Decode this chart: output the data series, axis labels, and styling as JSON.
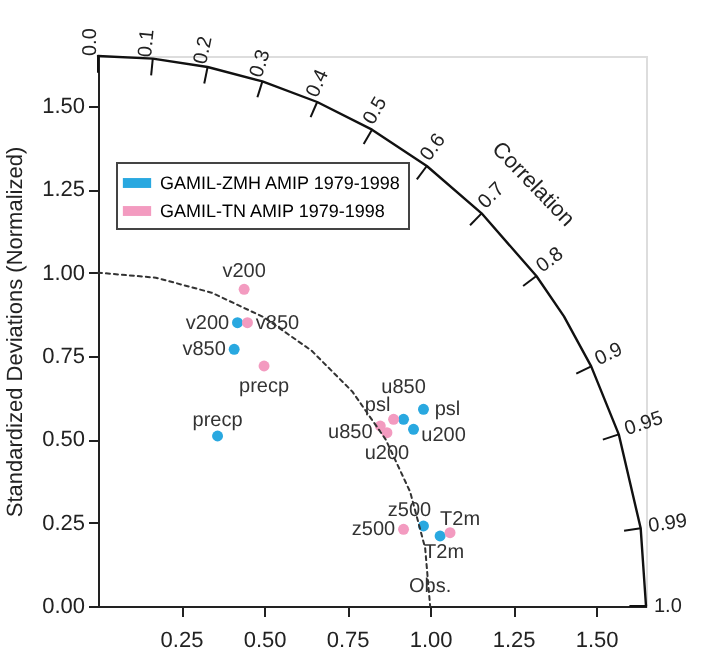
{
  "chart_data": {
    "type": "scatter",
    "ylabel": "Standardized Deviations (Normalized)",
    "xlim": [
      0,
      1.65
    ],
    "ylim": [
      0,
      1.65
    ],
    "xticks": [
      {
        "value": 0.25,
        "label": "0.25"
      },
      {
        "value": 0.5,
        "label": "0.50"
      },
      {
        "value": 0.75,
        "label": "0.75"
      },
      {
        "value": 1.0,
        "label": "1.00"
      },
      {
        "value": 1.25,
        "label": "1.25"
      },
      {
        "value": 1.5,
        "label": "1.50"
      }
    ],
    "yticks": [
      {
        "value": 0,
        "label": "0.00"
      },
      {
        "value": 0.25,
        "label": "0.25"
      },
      {
        "value": 0.5,
        "label": "0.50"
      },
      {
        "value": 0.75,
        "label": "0.75"
      },
      {
        "value": 1.0,
        "label": "1.00"
      },
      {
        "value": 1.25,
        "label": "1.25"
      },
      {
        "value": 1.5,
        "label": "1.50"
      }
    ],
    "series": [
      {
        "name": "GAMIL-ZMH AMIP 1979-1998",
        "color": "#29a8e0",
        "x": [
          0.42,
          0.41,
          0.36,
          0.92,
          0.98,
          0.95,
          0.98,
          1.03
        ],
        "values": [
          0.85,
          0.77,
          0.51,
          0.56,
          0.59,
          0.53,
          0.24,
          0.21
        ]
      },
      {
        "name": "GAMIL-TN AMIP 1979-1998",
        "color": "#f39bc0",
        "x": [
          0.44,
          0.45,
          0.5,
          0.89,
          0.85,
          0.87,
          0.92,
          1.06
        ],
        "values": [
          0.95,
          0.85,
          0.72,
          0.56,
          0.54,
          0.52,
          0.23,
          0.22
        ]
      },
      {
        "type": "line",
        "color": "#111111",
        "line_style": "solid",
        "marker": "none",
        "x": [
          0,
          0.165,
          0.33,
          0.495,
          0.66,
          0.825,
          0.99,
          1.155,
          1.32,
          1.403,
          1.485,
          1.568,
          1.634,
          1.65
        ],
        "values": [
          1.65,
          1.642,
          1.617,
          1.574,
          1.512,
          1.429,
          1.32,
          1.178,
          0.99,
          0.869,
          0.719,
          0.515,
          0.233,
          0
        ]
      },
      {
        "type": "line",
        "color": "#333333",
        "line_style": "dotted",
        "marker": "none",
        "x": [
          0,
          0.174,
          0.342,
          0.5,
          0.643,
          0.766,
          0.866,
          0.94,
          0.985,
          1.0
        ],
        "values": [
          1.0,
          0.985,
          0.94,
          0.866,
          0.766,
          0.643,
          0.5,
          0.342,
          0.174,
          0
        ]
      }
    ],
    "marker": "circle",
    "grid": false,
    "legend": "top left",
    "annotations": [
      {
        "text": "v200",
        "x": 0.42,
        "y": 0.85
      },
      {
        "text": "v850",
        "x": 0.41,
        "y": 0.77
      },
      {
        "text": "precp",
        "x": 0.36,
        "y": 0.51
      },
      {
        "text": "u850",
        "x": 0.92,
        "y": 0.56
      },
      {
        "text": "psl",
        "x": 0.98,
        "y": 0.59
      },
      {
        "text": "u200",
        "x": 0.95,
        "y": 0.53
      },
      {
        "text": "z500",
        "x": 0.98,
        "y": 0.24
      },
      {
        "text": "T2m",
        "x": 1.03,
        "y": 0.21
      },
      {
        "text": "v200",
        "x": 0.44,
        "y": 0.95
      },
      {
        "text": "v850",
        "x": 0.45,
        "y": 0.85
      },
      {
        "text": "precp",
        "x": 0.5,
        "y": 0.72
      },
      {
        "text": "psl",
        "x": 0.89,
        "y": 0.56
      },
      {
        "text": "u850",
        "x": 0.85,
        "y": 0.54
      },
      {
        "text": "u200",
        "x": 0.87,
        "y": 0.52
      },
      {
        "text": "z500",
        "x": 0.92,
        "y": 0.23
      },
      {
        "text": "T2m",
        "x": 1.06,
        "y": 0.22
      },
      {
        "text": "Obs.",
        "x": 1.0,
        "y": 0
      },
      {
        "text": "0.0",
        "x": 0,
        "y": 1.65
      },
      {
        "text": "0.1",
        "x": 0.165,
        "y": 1.642
      },
      {
        "text": "0.2",
        "x": 0.33,
        "y": 1.617
      },
      {
        "text": "0.3",
        "x": 0.495,
        "y": 1.574
      },
      {
        "text": "0.4",
        "x": 0.66,
        "y": 1.512
      },
      {
        "text": "0.5",
        "x": 0.825,
        "y": 1.429
      },
      {
        "text": "0.6",
        "x": 0.99,
        "y": 1.32
      },
      {
        "text": "0.7",
        "x": 1.155,
        "y": 1.178
      },
      {
        "text": "0.8",
        "x": 1.32,
        "y": 0.99
      },
      {
        "text": "0.9",
        "x": 1.485,
        "y": 0.719
      },
      {
        "text": "0.95",
        "x": 1.568,
        "y": 0.515
      },
      {
        "text": "0.99",
        "x": 1.634,
        "y": 0.233
      },
      {
        "text": "1.0",
        "x": 1.65,
        "y": 0
      },
      "Correlation"
    ]
  }
}
